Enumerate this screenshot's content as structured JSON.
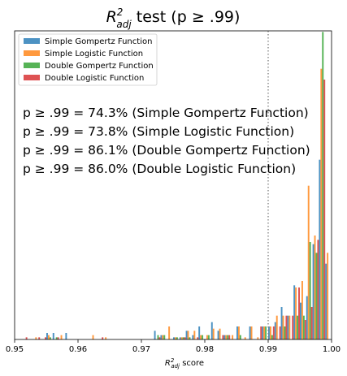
{
  "chart_data": {
    "type": "bar",
    "title": {
      "prefix": "R",
      "sup": "2",
      "sub": "adj",
      "suffix": " test (p ≥ .99)"
    },
    "xlabel": {
      "prefix": "R",
      "sup": "2",
      "sub": "adj",
      "suffix": " score"
    },
    "ylabel": "",
    "xlim": [
      0.95,
      1.0
    ],
    "ylim": [
      0,
      0.1425
    ],
    "xticks": [
      "0.95",
      "0.96",
      "0.97",
      "0.98",
      "0.99",
      "1.00"
    ],
    "xtick_values": [
      0.95,
      0.96,
      0.97,
      0.98,
      0.99,
      1.0
    ],
    "yticks_visible": false,
    "threshold_line": 0.99,
    "bin_width": 0.001,
    "legend_position": "upper left",
    "annotations": [
      "p ≥ .99 = 74.3% (Simple Gompertz Function)",
      "p ≥ .99 = 73.8% (Simple Logistic Function)",
      "p ≥ .99 = 86.1% (Double Gompertz Function)",
      "p ≥ .99 = 86.0% (Double Logistic Function)"
    ],
    "series": [
      {
        "name": "Simple Gompertz Function",
        "color": "#1f77b4",
        "points": [
          [
            0.955,
            0.003
          ],
          [
            0.956,
            0.003
          ],
          [
            0.958,
            0.003
          ],
          [
            0.972,
            0.004
          ],
          [
            0.973,
            0.002
          ],
          [
            0.975,
            0.001
          ],
          [
            0.976,
            0.001
          ],
          [
            0.977,
            0.004
          ],
          [
            0.978,
            0.002
          ],
          [
            0.979,
            0.006
          ],
          [
            0.981,
            0.008
          ],
          [
            0.982,
            0.004
          ],
          [
            0.983,
            0.002
          ],
          [
            0.985,
            0.006
          ],
          [
            0.987,
            0.006
          ],
          [
            0.989,
            0.006
          ],
          [
            0.99,
            0.006
          ],
          [
            0.991,
            0.008
          ],
          [
            0.992,
            0.015
          ],
          [
            0.993,
            0.011
          ],
          [
            0.994,
            0.025
          ],
          [
            0.995,
            0.017
          ],
          [
            0.996,
            0.02
          ],
          [
            0.997,
            0.044
          ],
          [
            0.998,
            0.083
          ],
          [
            0.999,
            0.035
          ]
        ]
      },
      {
        "name": "Simple Logistic Function",
        "color": "#ff7f0e",
        "points": [
          [
            0.953,
            0.001
          ],
          [
            0.955,
            0.002
          ],
          [
            0.957,
            0.002
          ],
          [
            0.962,
            0.002
          ],
          [
            0.964,
            0.001
          ],
          [
            0.973,
            0.002
          ],
          [
            0.974,
            0.006
          ],
          [
            0.975,
            0.001
          ],
          [
            0.976,
            0.001
          ],
          [
            0.977,
            0.004
          ],
          [
            0.978,
            0.004
          ],
          [
            0.979,
            0.002
          ],
          [
            0.98,
            0.002
          ],
          [
            0.981,
            0.005
          ],
          [
            0.982,
            0.005
          ],
          [
            0.983,
            0.002
          ],
          [
            0.984,
            0.002
          ],
          [
            0.985,
            0.006
          ],
          [
            0.986,
            0.001
          ],
          [
            0.987,
            0.006
          ],
          [
            0.988,
            0.001
          ],
          [
            0.989,
            0.006
          ],
          [
            0.99,
            0.006
          ],
          [
            0.991,
            0.011
          ],
          [
            0.992,
            0.011
          ],
          [
            0.993,
            0.011
          ],
          [
            0.994,
            0.024
          ],
          [
            0.995,
            0.027
          ],
          [
            0.996,
            0.071
          ],
          [
            0.997,
            0.048
          ],
          [
            0.998,
            0.125
          ],
          [
            0.999,
            0.04
          ]
        ]
      },
      {
        "name": "Double Gompertz Function",
        "color": "#2ca02c",
        "points": [
          [
            0.955,
            0.001
          ],
          [
            0.956,
            0.001
          ],
          [
            0.972,
            0.002
          ],
          [
            0.973,
            0.002
          ],
          [
            0.975,
            0.001
          ],
          [
            0.976,
            0.001
          ],
          [
            0.977,
            0.001
          ],
          [
            0.979,
            0.002
          ],
          [
            0.98,
            0.002
          ],
          [
            0.983,
            0.002
          ],
          [
            0.985,
            0.002
          ],
          [
            0.989,
            0.006
          ],
          [
            0.99,
            0.002
          ],
          [
            0.992,
            0.006
          ],
          [
            0.994,
            0.011
          ],
          [
            0.995,
            0.011
          ],
          [
            0.996,
            0.045
          ],
          [
            0.997,
            0.04
          ],
          [
            0.998,
            0.142
          ]
        ]
      },
      {
        "name": "Double Logistic Function",
        "color": "#d62728",
        "points": [
          [
            0.951,
            0.001
          ],
          [
            0.953,
            0.001
          ],
          [
            0.954,
            0.001
          ],
          [
            0.956,
            0.001
          ],
          [
            0.963,
            0.001
          ],
          [
            0.972,
            0.001
          ],
          [
            0.976,
            0.001
          ],
          [
            0.978,
            0.001
          ],
          [
            0.982,
            0.002
          ],
          [
            0.983,
            0.002
          ],
          [
            0.988,
            0.006
          ],
          [
            0.99,
            0.006
          ],
          [
            0.991,
            0.006
          ],
          [
            0.992,
            0.011
          ],
          [
            0.993,
            0.011
          ],
          [
            0.994,
            0.024
          ],
          [
            0.995,
            0.009
          ],
          [
            0.996,
            0.015
          ],
          [
            0.997,
            0.046
          ],
          [
            0.998,
            0.12
          ]
        ]
      }
    ]
  }
}
